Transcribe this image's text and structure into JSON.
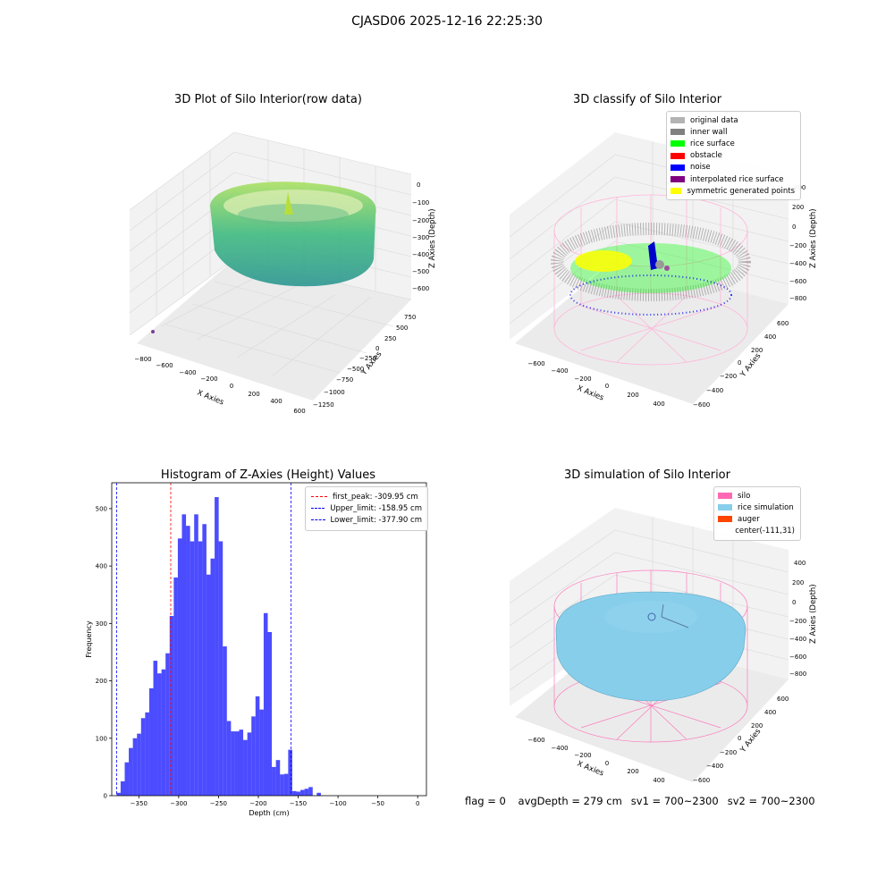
{
  "figure": {
    "suptitle": "CJASD06 2025-12-16 22:25:30"
  },
  "panels": {
    "p1": {
      "title": "3D Plot of Silo Interior(row data)",
      "xlabel": "X Axies",
      "ylabel": "Y Axies",
      "zlabel": "Z Axies (Depth)",
      "x_ticks": [
        "−800",
        "−600",
        "−400",
        "−200",
        "0",
        "200",
        "400",
        "600"
      ],
      "y_ticks": [
        "750",
        "500",
        "250",
        "0",
        "−250",
        "−500",
        "−750",
        "−1000",
        "−1250"
      ],
      "z_ticks": [
        "0",
        "−100",
        "−200",
        "−300",
        "−400",
        "−500",
        "−600"
      ]
    },
    "p2": {
      "title": "3D classify of Silo Interior",
      "xlabel": "X Axies",
      "ylabel": "Y Axies",
      "zlabel": "Z Axies (Depth)",
      "x_ticks": [
        "−600",
        "−400",
        "−200",
        "0",
        "200",
        "400"
      ],
      "y_ticks": [
        "600",
        "400",
        "200",
        "0",
        "−200",
        "−400",
        "−600"
      ],
      "z_ticks": [
        "400",
        "200",
        "0",
        "−200",
        "−400",
        "−600",
        "−800"
      ],
      "legend": [
        {
          "label": "original data",
          "color": "#b3b3b3"
        },
        {
          "label": "inner wall",
          "color": "#808080"
        },
        {
          "label": "rice surface",
          "color": "#00ff00"
        },
        {
          "label": "obstacle",
          "color": "#ff0000"
        },
        {
          "label": "noise",
          "color": "#0000ff"
        },
        {
          "label": "interpolated rice surface",
          "color": "#800080"
        },
        {
          "label": "symmetric generated points",
          "color": "#ffff00"
        }
      ]
    },
    "p4": {
      "title": "3D simulation of Silo Interior",
      "xlabel": "X Axies",
      "ylabel": "Y Axies",
      "zlabel": "Z Axies (Depth)",
      "x_ticks": [
        "−600",
        "−400",
        "−200",
        "0",
        "200",
        "400"
      ],
      "y_ticks": [
        "600",
        "400",
        "200",
        "0",
        "−200",
        "−400",
        "−600"
      ],
      "z_ticks": [
        "400",
        "200",
        "0",
        "−200",
        "−400",
        "−600",
        "−800"
      ],
      "legend": [
        {
          "label": "silo",
          "color": "#ff69b4"
        },
        {
          "label": "rice simulation",
          "color": "#87ceeb"
        },
        {
          "label": "auger",
          "color": "#ff4500"
        },
        {
          "label": "center(-111,31)",
          "color": ""
        }
      ]
    }
  },
  "chart_data": [
    {
      "type": "bar",
      "title": "Histogram of Z-Axies (Height) Values",
      "xlabel": "Depth (cm)",
      "ylabel": "Frequency",
      "xlim": [
        -384,
        11
      ],
      "ylim": [
        0,
        545
      ],
      "x_ticks": [
        -350,
        -300,
        -250,
        -200,
        -150,
        -100,
        -50,
        0
      ],
      "x_tick_labels": [
        "−350",
        "−300",
        "−250",
        "−200",
        "−150",
        "−100",
        "−50",
        "0"
      ],
      "y_ticks": [
        0,
        100,
        200,
        300,
        400,
        500
      ],
      "y_tick_labels": [
        "0",
        "100",
        "200",
        "300",
        "400",
        "500"
      ],
      "bin_start": -378,
      "bin_width": 5.13,
      "color": "#0000ff",
      "values": [
        5,
        25,
        58,
        83,
        100,
        108,
        135,
        145,
        187,
        235,
        213,
        220,
        248,
        313,
        380,
        448,
        490,
        470,
        443,
        490,
        443,
        473,
        385,
        413,
        520,
        443,
        260,
        130,
        112,
        112,
        115,
        97,
        110,
        138,
        173,
        150,
        318,
        285,
        50,
        62,
        37,
        38,
        80,
        8,
        7,
        10,
        12,
        15,
        0,
        5
      ],
      "vlines": [
        {
          "label": "first_peak: -309.95 cm",
          "x": -309.95,
          "color": "#ff0000"
        },
        {
          "label": "Upper_limit: -158.95 cm",
          "x": -158.95,
          "color": "#0000ff"
        },
        {
          "label": "Lower_limit: -377.90 cm",
          "x": -377.9,
          "color": "#0000ff"
        }
      ],
      "legend_position": "upper right",
      "grid": false
    }
  ],
  "footer": {
    "flag": "flag = 0",
    "avg_depth": "avgDepth = 279 cm",
    "sv1": "sv1 = 700~2300",
    "sv2": "sv2 = 700~2300"
  }
}
